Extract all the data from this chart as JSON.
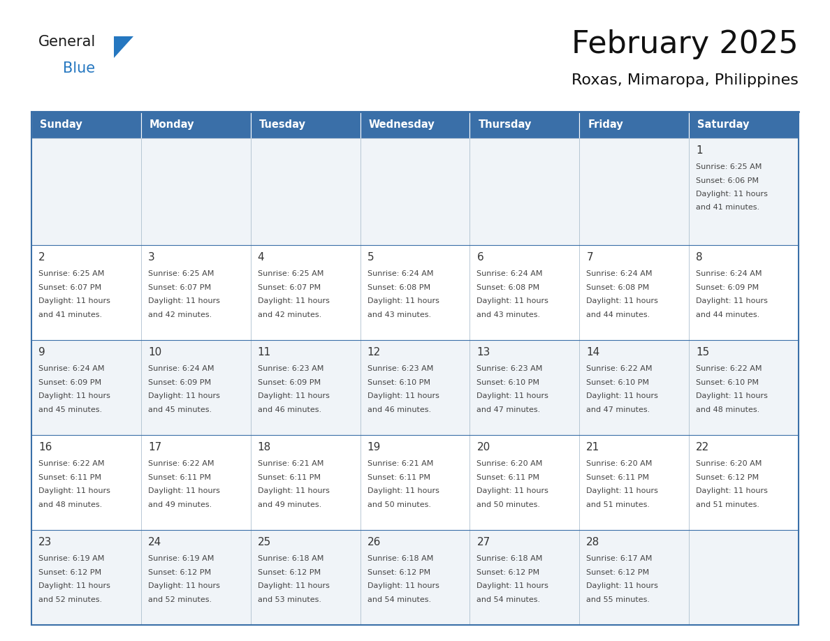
{
  "title": "February 2025",
  "subtitle": "Roxas, Mimaropa, Philippines",
  "days_of_week": [
    "Sunday",
    "Monday",
    "Tuesday",
    "Wednesday",
    "Thursday",
    "Friday",
    "Saturday"
  ],
  "header_bg_color": "#3a6fa8",
  "header_text_color": "#ffffff",
  "cell_bg_even": "#f0f4f8",
  "cell_bg_odd": "#ffffff",
  "border_color": "#3a6fa8",
  "cell_border_color": "#aabccc",
  "text_color": "#444444",
  "day_num_color": "#333333",
  "logo_general_color": "#1a1a1a",
  "logo_blue_color": "#2577c0",
  "title_color": "#111111",
  "subtitle_color": "#111111",
  "calendar_data": [
    {
      "day": 1,
      "row": 0,
      "col": 6,
      "sunrise": "6:25 AM",
      "sunset": "6:06 PM",
      "daylight_h": "11 hours",
      "daylight_m": "41 minutes"
    },
    {
      "day": 2,
      "row": 1,
      "col": 0,
      "sunrise": "6:25 AM",
      "sunset": "6:07 PM",
      "daylight_h": "11 hours",
      "daylight_m": "41 minutes"
    },
    {
      "day": 3,
      "row": 1,
      "col": 1,
      "sunrise": "6:25 AM",
      "sunset": "6:07 PM",
      "daylight_h": "11 hours",
      "daylight_m": "42 minutes"
    },
    {
      "day": 4,
      "row": 1,
      "col": 2,
      "sunrise": "6:25 AM",
      "sunset": "6:07 PM",
      "daylight_h": "11 hours",
      "daylight_m": "42 minutes"
    },
    {
      "day": 5,
      "row": 1,
      "col": 3,
      "sunrise": "6:24 AM",
      "sunset": "6:08 PM",
      "daylight_h": "11 hours",
      "daylight_m": "43 minutes"
    },
    {
      "day": 6,
      "row": 1,
      "col": 4,
      "sunrise": "6:24 AM",
      "sunset": "6:08 PM",
      "daylight_h": "11 hours",
      "daylight_m": "43 minutes"
    },
    {
      "day": 7,
      "row": 1,
      "col": 5,
      "sunrise": "6:24 AM",
      "sunset": "6:08 PM",
      "daylight_h": "11 hours",
      "daylight_m": "44 minutes"
    },
    {
      "day": 8,
      "row": 1,
      "col": 6,
      "sunrise": "6:24 AM",
      "sunset": "6:09 PM",
      "daylight_h": "11 hours",
      "daylight_m": "44 minutes"
    },
    {
      "day": 9,
      "row": 2,
      "col": 0,
      "sunrise": "6:24 AM",
      "sunset": "6:09 PM",
      "daylight_h": "11 hours",
      "daylight_m": "45 minutes"
    },
    {
      "day": 10,
      "row": 2,
      "col": 1,
      "sunrise": "6:24 AM",
      "sunset": "6:09 PM",
      "daylight_h": "11 hours",
      "daylight_m": "45 minutes"
    },
    {
      "day": 11,
      "row": 2,
      "col": 2,
      "sunrise": "6:23 AM",
      "sunset": "6:09 PM",
      "daylight_h": "11 hours",
      "daylight_m": "46 minutes"
    },
    {
      "day": 12,
      "row": 2,
      "col": 3,
      "sunrise": "6:23 AM",
      "sunset": "6:10 PM",
      "daylight_h": "11 hours",
      "daylight_m": "46 minutes"
    },
    {
      "day": 13,
      "row": 2,
      "col": 4,
      "sunrise": "6:23 AM",
      "sunset": "6:10 PM",
      "daylight_h": "11 hours",
      "daylight_m": "47 minutes"
    },
    {
      "day": 14,
      "row": 2,
      "col": 5,
      "sunrise": "6:22 AM",
      "sunset": "6:10 PM",
      "daylight_h": "11 hours",
      "daylight_m": "47 minutes"
    },
    {
      "day": 15,
      "row": 2,
      "col": 6,
      "sunrise": "6:22 AM",
      "sunset": "6:10 PM",
      "daylight_h": "11 hours",
      "daylight_m": "48 minutes"
    },
    {
      "day": 16,
      "row": 3,
      "col": 0,
      "sunrise": "6:22 AM",
      "sunset": "6:11 PM",
      "daylight_h": "11 hours",
      "daylight_m": "48 minutes"
    },
    {
      "day": 17,
      "row": 3,
      "col": 1,
      "sunrise": "6:22 AM",
      "sunset": "6:11 PM",
      "daylight_h": "11 hours",
      "daylight_m": "49 minutes"
    },
    {
      "day": 18,
      "row": 3,
      "col": 2,
      "sunrise": "6:21 AM",
      "sunset": "6:11 PM",
      "daylight_h": "11 hours",
      "daylight_m": "49 minutes"
    },
    {
      "day": 19,
      "row": 3,
      "col": 3,
      "sunrise": "6:21 AM",
      "sunset": "6:11 PM",
      "daylight_h": "11 hours",
      "daylight_m": "50 minutes"
    },
    {
      "day": 20,
      "row": 3,
      "col": 4,
      "sunrise": "6:20 AM",
      "sunset": "6:11 PM",
      "daylight_h": "11 hours",
      "daylight_m": "50 minutes"
    },
    {
      "day": 21,
      "row": 3,
      "col": 5,
      "sunrise": "6:20 AM",
      "sunset": "6:11 PM",
      "daylight_h": "11 hours",
      "daylight_m": "51 minutes"
    },
    {
      "day": 22,
      "row": 3,
      "col": 6,
      "sunrise": "6:20 AM",
      "sunset": "6:12 PM",
      "daylight_h": "11 hours",
      "daylight_m": "51 minutes"
    },
    {
      "day": 23,
      "row": 4,
      "col": 0,
      "sunrise": "6:19 AM",
      "sunset": "6:12 PM",
      "daylight_h": "11 hours",
      "daylight_m": "52 minutes"
    },
    {
      "day": 24,
      "row": 4,
      "col": 1,
      "sunrise": "6:19 AM",
      "sunset": "6:12 PM",
      "daylight_h": "11 hours",
      "daylight_m": "52 minutes"
    },
    {
      "day": 25,
      "row": 4,
      "col": 2,
      "sunrise": "6:18 AM",
      "sunset": "6:12 PM",
      "daylight_h": "11 hours",
      "daylight_m": "53 minutes"
    },
    {
      "day": 26,
      "row": 4,
      "col": 3,
      "sunrise": "6:18 AM",
      "sunset": "6:12 PM",
      "daylight_h": "11 hours",
      "daylight_m": "54 minutes"
    },
    {
      "day": 27,
      "row": 4,
      "col": 4,
      "sunrise": "6:18 AM",
      "sunset": "6:12 PM",
      "daylight_h": "11 hours",
      "daylight_m": "54 minutes"
    },
    {
      "day": 28,
      "row": 4,
      "col": 5,
      "sunrise": "6:17 AM",
      "sunset": "6:12 PM",
      "daylight_h": "11 hours",
      "daylight_m": "55 minutes"
    }
  ]
}
